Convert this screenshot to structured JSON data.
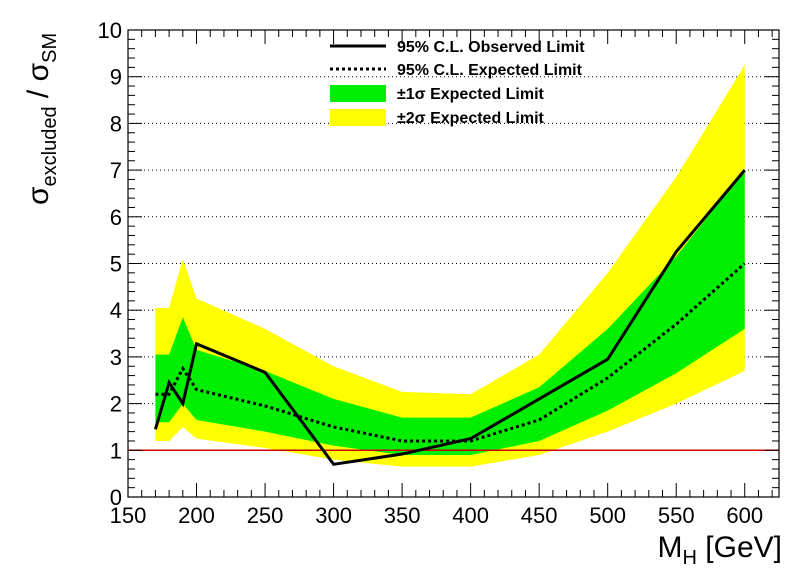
{
  "chart_data": {
    "type": "line",
    "xlabel": {
      "main": "M",
      "sub": "H",
      "unit": " [GeV]"
    },
    "ylabel": {
      "sigma1": "σ",
      "sub1": "excluded",
      "slash": " / ",
      "sigma2": "σ",
      "sub2": "SM"
    },
    "xlim": [
      150,
      625
    ],
    "ylim": [
      0,
      10
    ],
    "x_ticks": [
      150,
      200,
      250,
      300,
      350,
      400,
      450,
      500,
      550,
      600
    ],
    "y_ticks": [
      0,
      1,
      2,
      3,
      4,
      5,
      6,
      7,
      8,
      9,
      10
    ],
    "grid": {
      "horizontal": true,
      "vertical": false
    },
    "legend_position": "top-center",
    "reference_line": {
      "y": 1,
      "color": "#cc0000"
    },
    "x": [
      170,
      180,
      190,
      200,
      250,
      300,
      350,
      400,
      450,
      500,
      550,
      600
    ],
    "series": [
      {
        "name": "95% C.L. Observed Limit",
        "style": "solid",
        "color": "#000000",
        "values": [
          1.45,
          2.45,
          2.0,
          3.28,
          2.67,
          0.7,
          0.92,
          1.25,
          2.1,
          2.95,
          5.25,
          7.0
        ]
      },
      {
        "name": "95% C.L. Expected Limit",
        "style": "dotted",
        "color": "#000000",
        "values": [
          2.2,
          2.2,
          2.75,
          2.3,
          1.95,
          1.5,
          1.2,
          1.2,
          1.65,
          2.55,
          3.7,
          5.0
        ]
      }
    ],
    "bands": [
      {
        "name": "±1σ Expected Limit",
        "color": "#00ee00",
        "lower": [
          1.6,
          1.6,
          2.0,
          1.65,
          1.4,
          1.1,
          0.9,
          0.9,
          1.2,
          1.85,
          2.65,
          3.6
        ],
        "upper": [
          3.05,
          3.05,
          3.85,
          3.15,
          2.7,
          2.1,
          1.7,
          1.7,
          2.35,
          3.6,
          5.15,
          7.0
        ]
      },
      {
        "name": "±2σ Expected Limit",
        "color": "#ffff00",
        "lower": [
          1.2,
          1.2,
          1.5,
          1.25,
          1.05,
          0.8,
          0.65,
          0.65,
          0.9,
          1.4,
          2.0,
          2.7
        ],
        "upper": [
          4.05,
          4.05,
          5.1,
          4.25,
          3.6,
          2.8,
          2.25,
          2.2,
          3.05,
          4.8,
          6.85,
          9.25
        ]
      }
    ],
    "legend": {
      "observed": "95% C.L. Observed Limit",
      "expected": "95% C.L. Expected Limit",
      "band1": "±1σ Expected Limit",
      "band2": "±2σ Expected Limit"
    }
  }
}
